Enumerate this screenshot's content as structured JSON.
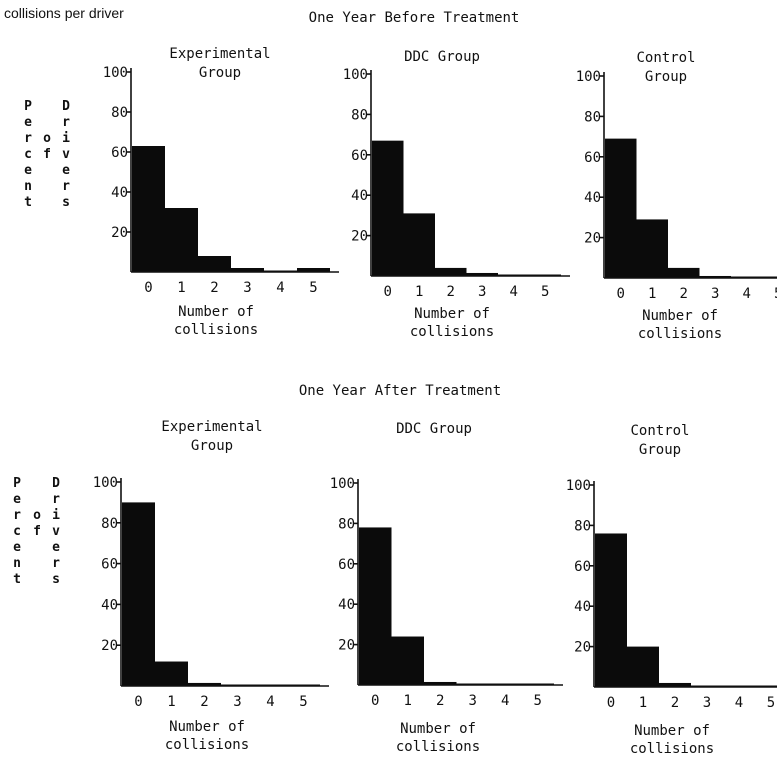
{
  "header": {
    "caption": "collisions per driver",
    "before_title": "One Year Before Treatment",
    "after_title": "One Year After Treatment"
  },
  "y_axis_label": {
    "word1": [
      "P",
      "e",
      "r",
      "c",
      "e",
      "n",
      "t"
    ],
    "word2": [
      "o",
      "f"
    ],
    "word3": [
      "D",
      "r",
      "i",
      "v",
      "e",
      "r",
      "s"
    ]
  },
  "colors": {
    "bar": "#0b0b0b",
    "axis": "#111111"
  },
  "chart_data": [
    {
      "type": "bar",
      "period": "One Year Before Treatment",
      "title_lines": [
        "Experimental",
        "Group"
      ],
      "categories": [
        "0",
        "1",
        "2",
        "3",
        "4",
        "5"
      ],
      "values": [
        63,
        32,
        8,
        2,
        0.5,
        2
      ],
      "yticks": [
        "20",
        "40",
        "60",
        "80",
        "100"
      ],
      "ylim": [
        0,
        100
      ],
      "xlabel_lines": [
        "Number of",
        "collisions"
      ]
    },
    {
      "type": "bar",
      "period": "One Year Before Treatment",
      "title_lines": [
        "DDC Group"
      ],
      "categories": [
        "0",
        "1",
        "2",
        "3",
        "4",
        "5"
      ],
      "values": [
        67,
        31,
        4,
        1.5,
        0.3,
        0.3
      ],
      "yticks": [
        "20",
        "40",
        "60",
        "80",
        "100"
      ],
      "ylim": [
        0,
        100
      ],
      "xlabel_lines": [
        "Number of",
        "collisions"
      ]
    },
    {
      "type": "bar",
      "period": "One Year Before Treatment",
      "title_lines": [
        "Control",
        "Group"
      ],
      "categories": [
        "0",
        "1",
        "2",
        "3",
        "4",
        "5"
      ],
      "values": [
        69,
        29,
        5,
        1,
        0.3,
        0.3
      ],
      "yticks": [
        "20",
        "40",
        "60",
        "80",
        "100"
      ],
      "ylim": [
        0,
        100
      ],
      "xlabel_lines": [
        "Number of",
        "collisions"
      ]
    },
    {
      "type": "bar",
      "period": "One Year After Treatment",
      "title_lines": [
        "Experimental",
        "Group"
      ],
      "categories": [
        "0",
        "1",
        "2",
        "3",
        "4",
        "5"
      ],
      "values": [
        90,
        12,
        1.5,
        0.3,
        0.3,
        0.3
      ],
      "yticks": [
        "20",
        "40",
        "60",
        "80",
        "100"
      ],
      "ylim": [
        0,
        100
      ],
      "xlabel_lines": [
        "Number of",
        "collisions"
      ]
    },
    {
      "type": "bar",
      "period": "One Year After Treatment",
      "title_lines": [
        "DDC Group"
      ],
      "categories": [
        "0",
        "1",
        "2",
        "3",
        "4",
        "5"
      ],
      "values": [
        78,
        24,
        1.5,
        0.3,
        0.3,
        0.3
      ],
      "yticks": [
        "20",
        "40",
        "60",
        "80",
        "100"
      ],
      "ylim": [
        0,
        100
      ],
      "xlabel_lines": [
        "Number of",
        "collisions"
      ]
    },
    {
      "type": "bar",
      "period": "One Year After Treatment",
      "title_lines": [
        "Control",
        "Group"
      ],
      "categories": [
        "0",
        "1",
        "2",
        "3",
        "4",
        "5"
      ],
      "values": [
        76,
        20,
        2,
        0.3,
        0.3,
        0.3
      ],
      "yticks": [
        "20",
        "40",
        "60",
        "80",
        "100"
      ],
      "ylim": [
        0,
        100
      ],
      "xlabel_lines": [
        "Number of",
        "collisions"
      ]
    }
  ]
}
